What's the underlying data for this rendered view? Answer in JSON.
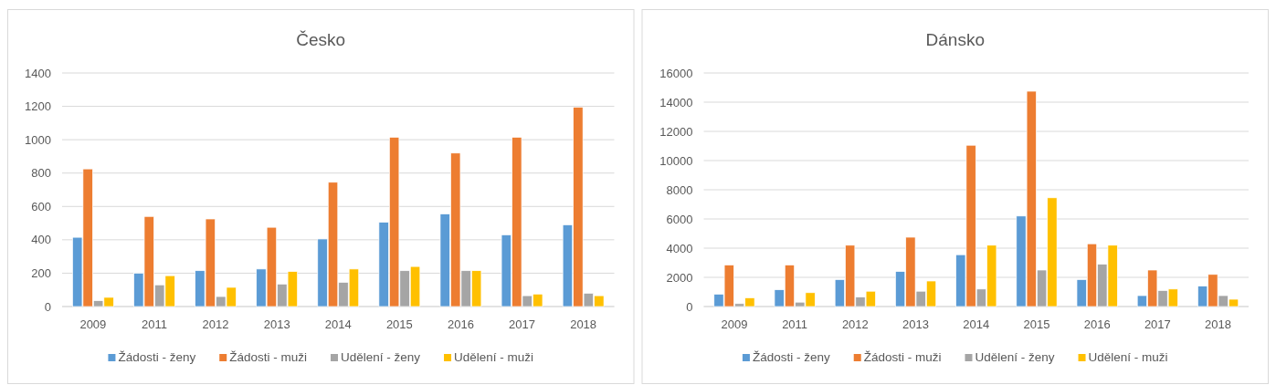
{
  "chart_data": [
    {
      "type": "bar",
      "title": "Česko",
      "categories": [
        "2009",
        "2011",
        "2012",
        "2013",
        "2014",
        "2015",
        "2016",
        "2017",
        "2018"
      ],
      "series": [
        {
          "name": "Žádosti - ženy",
          "color": "#5b9bd5",
          "values": [
            415,
            200,
            215,
            225,
            405,
            505,
            555,
            430,
            490
          ]
        },
        {
          "name": "Žádosti - muži",
          "color": "#ed7d31",
          "values": [
            825,
            540,
            525,
            475,
            745,
            1015,
            920,
            1015,
            1195
          ]
        },
        {
          "name": "Udělení - ženy",
          "color": "#a5a5a5",
          "values": [
            35,
            130,
            60,
            135,
            145,
            215,
            215,
            65,
            80
          ]
        },
        {
          "name": "Udělení - muži",
          "color": "#ffc000",
          "values": [
            55,
            185,
            115,
            210,
            225,
            240,
            215,
            75,
            65
          ]
        }
      ],
      "ylim": [
        0,
        1400
      ],
      "yticks": [
        0,
        200,
        400,
        600,
        800,
        1000,
        1200,
        1400
      ],
      "grid": "y",
      "legend": "bottom"
    },
    {
      "type": "bar",
      "title": "Dánsko",
      "categories": [
        "2009",
        "2011",
        "2012",
        "2013",
        "2014",
        "2015",
        "2016",
        "2017",
        "2018"
      ],
      "series": [
        {
          "name": "Žádosti - ženy",
          "color": "#5b9bd5",
          "values": [
            850,
            1150,
            1850,
            2400,
            3550,
            6200,
            1850,
            750,
            1400
          ]
        },
        {
          "name": "Žádosti - muži",
          "color": "#ed7d31",
          "values": [
            2850,
            2850,
            4200,
            4750,
            11050,
            14750,
            4300,
            2500,
            2200
          ]
        },
        {
          "name": "Udělení - ženy",
          "color": "#a5a5a5",
          "values": [
            200,
            300,
            650,
            1050,
            1200,
            2500,
            2900,
            1100,
            750
          ]
        },
        {
          "name": "Udělení - muži",
          "color": "#ffc000",
          "values": [
            600,
            950,
            1050,
            1750,
            4200,
            7450,
            4200,
            1200,
            500
          ]
        }
      ],
      "ylim": [
        0,
        16000
      ],
      "yticks": [
        0,
        2000,
        4000,
        6000,
        8000,
        10000,
        12000,
        14000,
        16000
      ],
      "grid": "y",
      "legend": "bottom"
    }
  ]
}
